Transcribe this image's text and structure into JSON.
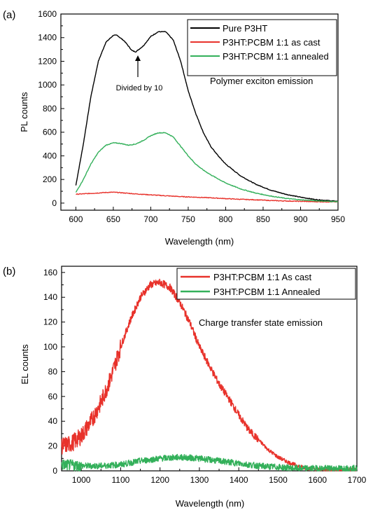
{
  "chart_data": [
    {
      "type": "line",
      "panel_label": "(a)",
      "xlabel": "Wavelength (nm)",
      "ylabel": "PL counts",
      "xlim": [
        580,
        950
      ],
      "ylim": [
        -60,
        1600
      ],
      "xticks": [
        600,
        650,
        700,
        750,
        800,
        850,
        900,
        950
      ],
      "yticks": [
        0,
        200,
        400,
        600,
        800,
        1000,
        1200,
        1400,
        1600
      ],
      "legend_position": "top-right",
      "annotations": [
        "Divided by 10",
        "Polymer exciton emission"
      ],
      "series": [
        {
          "name": "Pure P3HT",
          "color": "#000000",
          "x": [
            600,
            610,
            620,
            630,
            640,
            650,
            655,
            665,
            675,
            680,
            690,
            700,
            710,
            720,
            730,
            740,
            750,
            760,
            770,
            780,
            790,
            800,
            820,
            840,
            860,
            880,
            900,
            920,
            950
          ],
          "y": [
            150,
            500,
            900,
            1200,
            1360,
            1420,
            1420,
            1370,
            1290,
            1280,
            1330,
            1410,
            1450,
            1450,
            1380,
            1200,
            950,
            760,
            600,
            480,
            400,
            330,
            230,
            160,
            110,
            75,
            50,
            30,
            15
          ]
        },
        {
          "name": "P3HT:PCBM 1:1 as cast",
          "color": "#e8322b",
          "x": [
            600,
            620,
            640,
            650,
            660,
            680,
            700,
            720,
            740,
            760,
            780,
            800,
            820,
            840,
            860,
            880,
            900,
            920,
            950
          ],
          "y": [
            75,
            82,
            90,
            92,
            88,
            78,
            70,
            62,
            55,
            50,
            45,
            38,
            32,
            28,
            22,
            18,
            15,
            12,
            10
          ]
        },
        {
          "name": "P3HT:PCBM 1:1 annealed",
          "color": "#33b05a",
          "x": [
            600,
            610,
            620,
            630,
            640,
            650,
            660,
            670,
            680,
            690,
            700,
            710,
            720,
            730,
            740,
            750,
            760,
            770,
            780,
            790,
            800,
            820,
            840,
            860,
            880,
            900,
            920,
            950
          ],
          "y": [
            90,
            200,
            330,
            430,
            490,
            510,
            505,
            490,
            500,
            530,
            570,
            595,
            595,
            560,
            480,
            400,
            330,
            280,
            240,
            205,
            170,
            120,
            85,
            60,
            40,
            28,
            20,
            12
          ]
        }
      ]
    },
    {
      "type": "line",
      "panel_label": "(b)",
      "xlabel": "Wavelength (nm)",
      "ylabel": "EL counts",
      "xlim": [
        950,
        1700
      ],
      "ylim": [
        0,
        165
      ],
      "xticks": [
        1000,
        1100,
        1200,
        1300,
        1400,
        1500,
        1600,
        1700
      ],
      "yticks": [
        0,
        20,
        40,
        60,
        80,
        100,
        120,
        140,
        160
      ],
      "legend_position": "top-right",
      "annotations": [
        "Charge transfer state emission"
      ],
      "series": [
        {
          "name": "P3HT:PCBM 1:1 As cast",
          "color": "#e8322b",
          "x": [
            950,
            975,
            1000,
            1025,
            1050,
            1075,
            1100,
            1125,
            1150,
            1175,
            1200,
            1225,
            1250,
            1275,
            1300,
            1325,
            1350,
            1375,
            1400,
            1425,
            1450,
            1475,
            1500,
            1525,
            1550,
            1575,
            1600,
            1625,
            1650,
            1700
          ],
          "y": [
            20,
            22,
            28,
            40,
            55,
            75,
            100,
            122,
            140,
            150,
            152,
            148,
            136,
            120,
            100,
            85,
            70,
            58,
            45,
            33,
            25,
            17,
            11,
            7,
            4,
            2,
            1,
            1,
            1,
            1
          ]
        },
        {
          "name": "P3HT:PCBM 1:1 Annealed",
          "color": "#33b05a",
          "x": [
            950,
            1000,
            1050,
            1100,
            1150,
            1200,
            1250,
            1300,
            1350,
            1400,
            1450,
            1500,
            1550,
            1600,
            1650,
            1700
          ],
          "y": [
            5,
            4,
            4,
            5,
            8,
            10,
            11,
            10,
            8,
            6,
            4,
            3,
            2,
            2,
            2,
            2
          ]
        }
      ]
    }
  ]
}
